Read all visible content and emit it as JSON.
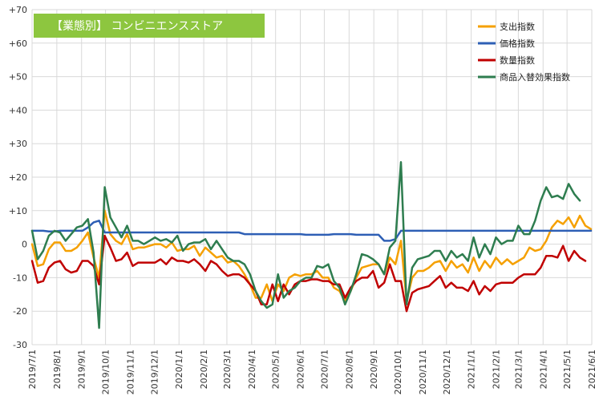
{
  "chart_data": {
    "type": "line",
    "title": "【業態別】 コンビニエンスストア",
    "title_bg_color": "#8dc63f",
    "ylim": [
      -30,
      70
    ],
    "y_ticks": [
      "+70",
      "+60",
      "+50",
      "+40",
      "+30",
      "+20",
      "+10",
      "0",
      "-10",
      "-20",
      "-30"
    ],
    "y_tick_values": [
      70,
      60,
      50,
      40,
      30,
      20,
      10,
      0,
      -10,
      -20,
      -30
    ],
    "x_ticks": [
      "2019/7/1",
      "2019/8/1",
      "2019/9/1",
      "2019/10/1",
      "2019/11/1",
      "2019/12/1",
      "2020/1/1",
      "2020/2/1",
      "2020/3/1",
      "2020/4/1",
      "2020/5/1",
      "2020/6/1",
      "2020/7/1",
      "2020/8/1",
      "2020/9/1",
      "2020/10/1",
      "2020/11/1",
      "2020/12/1",
      "2021/1/1",
      "2021/2/1",
      "2021/3/1",
      "2021/4/1",
      "2021/5/1",
      "2021/6/1"
    ],
    "x_start": "2019-07-01",
    "interval_days": 7,
    "grid": true,
    "legend_position": "top-right",
    "series": [
      {
        "name": "支出指数",
        "color": "#f5a000",
        "values": [
          0,
          -6.5,
          -6,
          -1.5,
          0.5,
          0.5,
          -2,
          -2,
          -1,
          1,
          3.5,
          -4,
          -10,
          10,
          3,
          1,
          0,
          3,
          -1.5,
          -1,
          -1,
          -0.5,
          0,
          0,
          -1,
          0.5,
          -2,
          -1.5,
          -1.5,
          -0.5,
          -3.5,
          -1,
          -2.5,
          -4,
          -3.5,
          -5.5,
          -5,
          -6.5,
          -9,
          -12,
          -16,
          -16,
          -12,
          -17,
          -12,
          -14,
          -10,
          -9,
          -9.5,
          -9,
          -9,
          -8,
          -10,
          -10,
          -13,
          -14,
          -17,
          -14,
          -10,
          -7,
          -6.5,
          -6,
          -6,
          -9,
          -4,
          -6,
          1,
          -17,
          -10,
          -8,
          -8,
          -7,
          -5.5,
          -5,
          -8,
          -5,
          -7,
          -6,
          -8.5,
          -4,
          -8,
          -5,
          -7,
          -4,
          -6,
          -4.5,
          -6,
          -5,
          -4,
          -1,
          -2,
          -1.5,
          1,
          5,
          7,
          6,
          8,
          5,
          8.5,
          5.5,
          4.5
        ],
        "value_unit": "%"
      },
      {
        "name": "価格指数",
        "color": "#2e5fb5",
        "values": [
          4,
          4,
          4,
          3.8,
          3.8,
          4,
          4,
          4,
          4,
          4,
          5,
          6.5,
          7,
          3.5,
          3.5,
          3.5,
          3.5,
          3.5,
          3.5,
          3.5,
          3.5,
          3.5,
          3.5,
          3.5,
          3.5,
          3.5,
          3.5,
          3.5,
          3.5,
          3.5,
          3.5,
          3.5,
          3.5,
          3.5,
          3.5,
          3.5,
          3.5,
          3.5,
          3,
          3,
          3,
          3,
          3,
          3,
          3,
          3,
          3,
          3,
          3,
          2.8,
          2.8,
          2.8,
          2.8,
          2.8,
          3,
          3,
          3,
          3,
          2.8,
          2.8,
          2.8,
          2.8,
          2.8,
          1,
          1,
          1.5,
          4,
          4,
          4,
          4,
          4,
          4,
          4,
          4,
          4,
          4,
          4,
          4,
          4,
          4,
          4,
          4,
          4,
          4,
          4,
          4,
          4,
          4,
          4,
          4,
          4,
          4,
          4,
          4,
          4,
          4,
          4,
          4,
          4,
          4,
          4
        ],
        "value_unit": "%"
      },
      {
        "name": "数量指数",
        "color": "#c00000",
        "values": [
          -5,
          -11.5,
          -11,
          -7,
          -5.5,
          -5,
          -7.5,
          -8.5,
          -8,
          -5,
          -5,
          -6.5,
          -12,
          2.5,
          -1,
          -5,
          -4.5,
          -2.5,
          -6.5,
          -5.5,
          -5.5,
          -5.5,
          -5.5,
          -4.5,
          -6,
          -4,
          -5,
          -5,
          -5.5,
          -4.5,
          -6,
          -8,
          -5,
          -6,
          -8,
          -9.5,
          -9,
          -9,
          -10,
          -12,
          -14,
          -18,
          -18,
          -12,
          -17,
          -12,
          -15,
          -12,
          -11,
          -11,
          -10.5,
          -10.5,
          -11,
          -11,
          -12,
          -12,
          -16,
          -13,
          -11,
          -10,
          -10,
          -8,
          -13,
          -11.5,
          -6,
          -11,
          -11,
          -20,
          -14.5,
          -13.5,
          -13,
          -12.5,
          -11,
          -9.5,
          -13,
          -11.5,
          -13,
          -13,
          -14,
          -11,
          -15,
          -12.5,
          -14,
          -12,
          -11.5,
          -11.5,
          -11.5,
          -10,
          -9,
          -9,
          -9,
          -7,
          -3.5,
          -3.5,
          -4,
          -0.5,
          -5,
          -2,
          -4,
          -5
        ],
        "value_unit": "%"
      },
      {
        "name": "商品入替効果指数",
        "color": "#2e7d4f",
        "values": [
          4,
          -4.5,
          -2,
          2.5,
          4,
          3.5,
          1,
          3,
          5,
          5.5,
          7.5,
          -2.5,
          -25,
          17,
          8,
          5,
          2,
          5.5,
          1,
          1,
          0,
          1,
          2,
          1,
          1.5,
          0.5,
          2.5,
          -2,
          0,
          0.5,
          0.5,
          1.5,
          -1.5,
          1,
          -1.5,
          -4,
          -5,
          -5,
          -6,
          -9,
          -14,
          -17,
          -19,
          -18,
          -9,
          -16,
          -14,
          -13,
          -11,
          -10,
          -10,
          -6.5,
          -7,
          -6,
          -11,
          -13,
          -18,
          -14,
          -9,
          -3,
          -3.5,
          -4.5,
          -6,
          -9,
          -1,
          1,
          24.5,
          -18,
          -7,
          -4.5,
          -4,
          -3.5,
          -2,
          -2,
          -5,
          -2,
          -4,
          -3,
          -5,
          2,
          -4,
          0,
          -3,
          2,
          0,
          1,
          1,
          5.5,
          3,
          3,
          7,
          13,
          17,
          14,
          14.5,
          13.5,
          18,
          15,
          13
        ],
        "value_unit": "%"
      }
    ]
  }
}
